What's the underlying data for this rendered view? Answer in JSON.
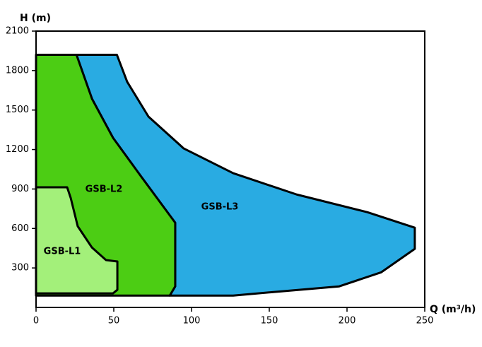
{
  "chart_data": {
    "type": "region",
    "y_axis_label": "H (m)",
    "x_axis_label": "Q (m³/h)",
    "xlim": [
      0,
      250
    ],
    "ylim": [
      0,
      2100
    ],
    "xticks": [
      0,
      50,
      100,
      150,
      200,
      250
    ],
    "yticks": [
      300,
      600,
      900,
      1200,
      1500,
      1800,
      2100
    ],
    "series": [
      {
        "name": "GSB-L3",
        "color": "#29abe2",
        "x": [
          26,
          52,
          58.6,
          72.3,
          95,
          126.8,
          167.7,
          213,
          243.6,
          243.6,
          222,
          195,
          158.6,
          126.8,
          86,
          89.5,
          89.5,
          67.7,
          49.5,
          36
        ],
        "values": [
          1920,
          1920,
          1715,
          1450,
          1208,
          1020,
          858,
          724,
          606,
          445,
          267,
          160,
          123,
          90,
          90,
          160,
          644,
          993,
          1289,
          1585
        ]
      },
      {
        "name": "GSB-L2",
        "color": "#4ccd14",
        "x": [
          0,
          26,
          36,
          49.5,
          67.7,
          89.5,
          89.5,
          86,
          0
        ],
        "values": [
          1920,
          1920,
          1585,
          1289,
          993,
          644,
          160,
          90,
          90
        ]
      },
      {
        "name": "GSB-L1",
        "color": "#a3f07a",
        "x": [
          0,
          20,
          22.3,
          26.8,
          35.9,
          45,
          52.3,
          52.3,
          49.5,
          0
        ],
        "values": [
          913,
          913,
          832,
          617,
          456,
          360,
          349,
          134,
          107,
          107
        ]
      }
    ]
  }
}
